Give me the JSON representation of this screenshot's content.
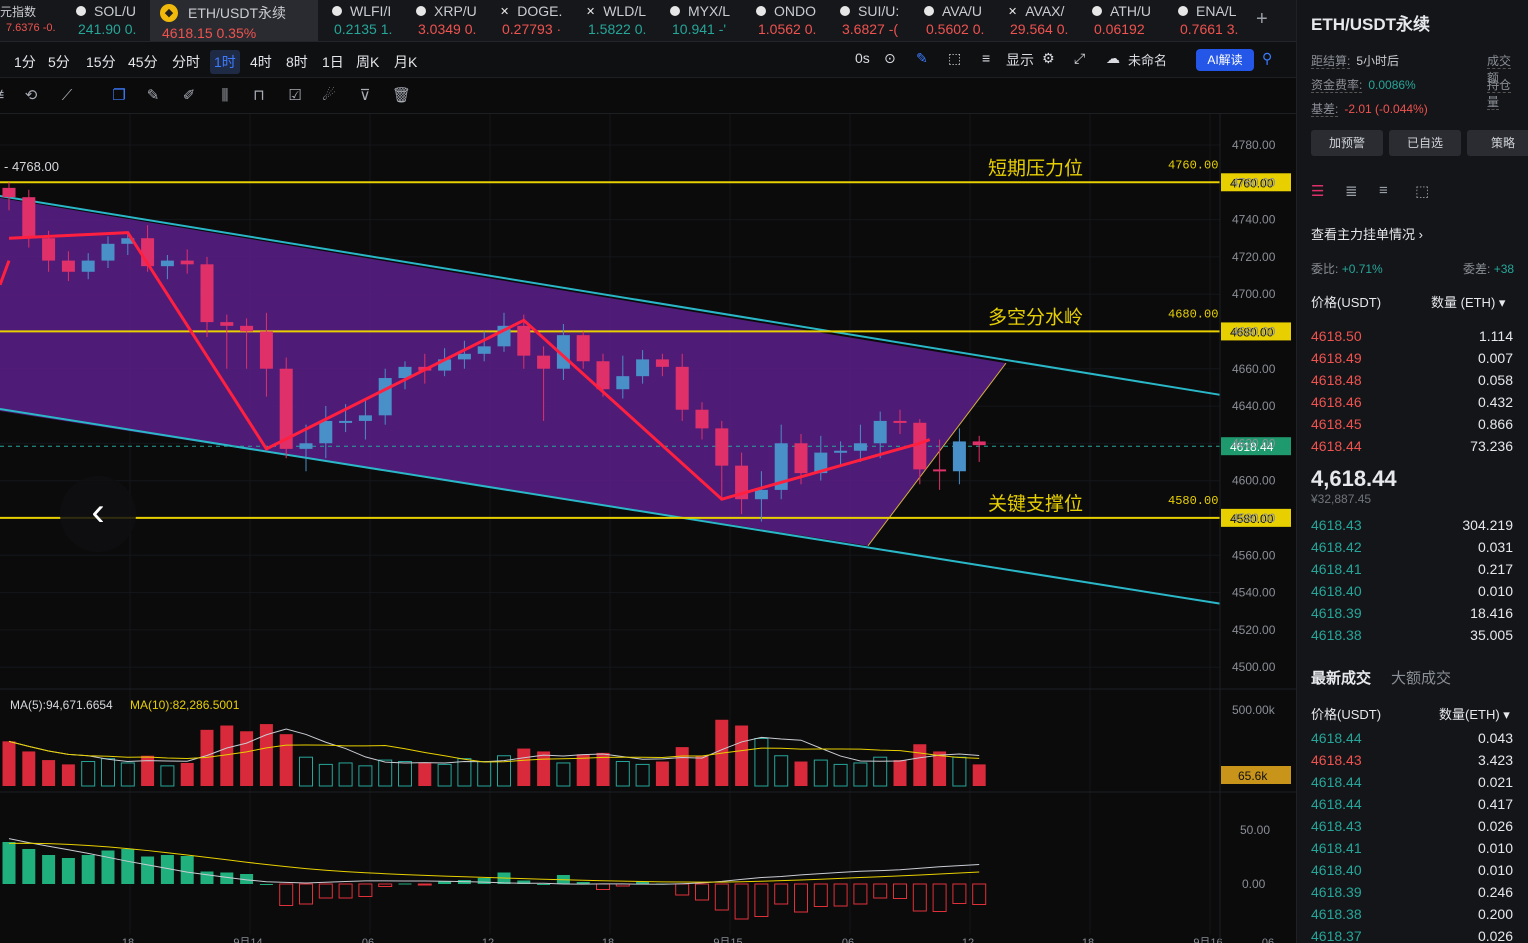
{
  "ticker": [
    {
      "name": "元指数",
      "price": "7.6376",
      "change": "-0.",
      "dir": "neg",
      "icon": "none",
      "active": false
    },
    {
      "name": "SOL/U",
      "price": "241.90",
      "change": "0.",
      "dir": "pos",
      "icon": "dot"
    },
    {
      "name": "ETH/USDT永续",
      "price": "4618.15",
      "change": "0.35%",
      "dir": "neg",
      "icon": "binance-logo",
      "active": true
    },
    {
      "name": "WLFI/I",
      "price": "0.2135",
      "change": "1.",
      "dir": "pos",
      "icon": "dot"
    },
    {
      "name": "XRP/U",
      "price": "3.0349",
      "change": "0.",
      "dir": "neg",
      "icon": "dot"
    },
    {
      "name": "DOGE.",
      "price": "0.27793",
      "change": "·",
      "dir": "neg",
      "icon": "x"
    },
    {
      "name": "WLD/L",
      "price": "1.5822",
      "change": "0.",
      "dir": "pos",
      "icon": "x"
    },
    {
      "name": "MYX/L",
      "price": "10.941",
      "change": "-'",
      "dir": "pos",
      "icon": "dot"
    },
    {
      "name": "ONDO",
      "price": "1.0562",
      "change": "0.",
      "dir": "neg",
      "icon": "dot"
    },
    {
      "name": "SUI/U:",
      "price": "3.6827",
      "change": "-(",
      "dir": "neg",
      "icon": "dot"
    },
    {
      "name": "AVA/U",
      "price": "0.5602",
      "change": "0.",
      "dir": "neg",
      "icon": "dot"
    },
    {
      "name": "AVAX/",
      "price": "29.564",
      "change": "0.",
      "dir": "neg",
      "icon": "x"
    },
    {
      "name": "ATH/U",
      "price": "0.06192",
      "change": "",
      "dir": "neg",
      "icon": "dot"
    },
    {
      "name": "ENA/L",
      "price": "0.7661",
      "change": "3.",
      "dir": "neg",
      "icon": "dot"
    }
  ],
  "timeframes": [
    "1分",
    "5分",
    "15分",
    "45分",
    "分时",
    "1时",
    "4时",
    "8时",
    "1日",
    "周K",
    "月K"
  ],
  "active_timeframe": "1时",
  "toolbar_right": {
    "countdown": "0s",
    "display": "显示",
    "unnamed": "未命名",
    "ai": "AI解读"
  },
  "chart": {
    "high_label": "4768.00",
    "levels": [
      {
        "name": "短期压力位",
        "price": "4760.00",
        "value": 4760
      },
      {
        "name": "多空分水岭",
        "price": "4680.00",
        "value": 4680
      },
      {
        "name": "关键支撑位",
        "price": "4580.00",
        "value": 4580
      }
    ],
    "current_price": "4618.44",
    "price_ticks": [
      "4780.00",
      "4760.00",
      "4740.00",
      "4720.00",
      "4700.00",
      "4680.00",
      "4660.00",
      "4640.00",
      "4620.00",
      "4600.00",
      "4580.00",
      "4560.00",
      "4540.00",
      "4520.00",
      "4500.00"
    ],
    "ma_label": {
      "ma5": "MA(5):94,671.6654",
      "ma10": "MA(10):82,286.5001"
    },
    "volume_ticks": [
      "500.00k",
      "65.6k"
    ],
    "macd_ticks": [
      "50.00",
      "0.00"
    ],
    "time_labels": [
      "18",
      "9月14",
      "06",
      "12",
      "18",
      "9月15",
      "06",
      "12",
      "18",
      "9月16",
      "06"
    ],
    "colors": {
      "up": "#4a90c8",
      "down": "#e0306a",
      "level": "#e8d000",
      "channel": "#2ab8c8",
      "zigzag": "#ff2040",
      "fill": "#5a1f8a"
    }
  },
  "chart_data": {
    "type": "candlestick",
    "interval": "1h",
    "y_range": [
      4490,
      4790
    ],
    "candles": [
      [
        4757,
        4752,
        4760,
        4745
      ],
      [
        4752,
        4730,
        4756,
        4725
      ],
      [
        4730,
        4718,
        4734,
        4712
      ],
      [
        4718,
        4712,
        4723,
        4707
      ],
      [
        4712,
        4718,
        4722,
        4708
      ],
      [
        4718,
        4727,
        4731,
        4714
      ],
      [
        4727,
        4730,
        4733,
        4721
      ],
      [
        4730,
        4715,
        4737,
        4712
      ],
      [
        4715,
        4718,
        4721,
        4708
      ],
      [
        4718,
        4716,
        4724,
        4711
      ],
      [
        4716,
        4685,
        4720,
        4677
      ],
      [
        4685,
        4683,
        4689,
        4660
      ],
      [
        4683,
        4680,
        4687,
        4660
      ],
      [
        4680,
        4660,
        4690,
        4645
      ],
      [
        4660,
        4617,
        4666,
        4612
      ],
      [
        4617,
        4620,
        4630,
        4605
      ],
      [
        4620,
        4632,
        4640,
        4612
      ],
      [
        4632,
        4632,
        4641,
        4626
      ],
      [
        4632,
        4635,
        4643,
        4622
      ],
      [
        4635,
        4655,
        4660,
        4630
      ],
      [
        4655,
        4661,
        4664,
        4649
      ],
      [
        4661,
        4659,
        4668,
        4652
      ],
      [
        4659,
        4665,
        4671,
        4656
      ],
      [
        4665,
        4668,
        4675,
        4660
      ],
      [
        4668,
        4672,
        4680,
        4664
      ],
      [
        4672,
        4683,
        4690,
        4669
      ],
      [
        4683,
        4667,
        4689,
        4660
      ],
      [
        4667,
        4660,
        4672,
        4632
      ],
      [
        4660,
        4678,
        4684,
        4654
      ],
      [
        4678,
        4664,
        4680,
        4660
      ],
      [
        4664,
        4649,
        4668,
        4645
      ],
      [
        4649,
        4656,
        4667,
        4644
      ],
      [
        4656,
        4665,
        4670,
        4652
      ],
      [
        4665,
        4661,
        4668,
        4656
      ],
      [
        4661,
        4638,
        4668,
        4632
      ],
      [
        4638,
        4628,
        4642,
        4622
      ],
      [
        4628,
        4608,
        4632,
        4590
      ],
      [
        4608,
        4590,
        4615,
        4582
      ],
      [
        4590,
        4595,
        4605,
        4578
      ],
      [
        4595,
        4620,
        4630,
        4590
      ],
      [
        4620,
        4604,
        4625,
        4598
      ],
      [
        4604,
        4615,
        4624,
        4600
      ],
      [
        4615,
        4616,
        4621,
        4608
      ],
      [
        4616,
        4620,
        4630,
        4610
      ],
      [
        4620,
        4632,
        4637,
        4612
      ],
      [
        4632,
        4631,
        4638,
        4625
      ],
      [
        4631,
        4606,
        4633,
        4598
      ],
      [
        4606,
        4605,
        4622,
        4595
      ],
      [
        4605,
        4621,
        4628,
        4598
      ],
      [
        4621,
        4619,
        4624,
        4610
      ]
    ],
    "volume": [
      310,
      240,
      180,
      150,
      170,
      190,
      160,
      210,
      140,
      160,
      390,
      420,
      380,
      430,
      360,
      200,
      150,
      160,
      140,
      180,
      170,
      160,
      150,
      190,
      170,
      210,
      260,
      240,
      160,
      220,
      230,
      170,
      150,
      170,
      270,
      210,
      460,
      420,
      330,
      210,
      170,
      180,
      150,
      160,
      200,
      180,
      290,
      240,
      200,
      150
    ]
  },
  "orderbook": {
    "title": "ETH/USDT永续",
    "settle_label": "距结算:",
    "settle_value": "5小时后",
    "vol_label": "成交额",
    "fund_label": "资金费率:",
    "fund_value": "0.0086%",
    "oi_label": "持仓量",
    "basis_label": "基差:",
    "basis_value": "-2.01 (-0.044%)",
    "buttons": [
      "加预警",
      "已自选",
      "策略"
    ],
    "main_link": "查看主力挂单情况",
    "ratio_label": "委比:",
    "ratio_value": "+0.71%",
    "diff_label": "委差:",
    "diff_value": "+38",
    "col_price": "价格(USDT)",
    "col_qty": "数量 (ETH)",
    "asks": [
      [
        "4618.50",
        "1.114"
      ],
      [
        "4618.49",
        "0.007"
      ],
      [
        "4618.48",
        "0.058"
      ],
      [
        "4618.46",
        "0.432"
      ],
      [
        "4618.45",
        "0.866"
      ],
      [
        "4618.44",
        "73.236"
      ]
    ],
    "last": "4,618.44",
    "last_cny": "¥32,887.45",
    "bids": [
      [
        "4618.43",
        "304.219"
      ],
      [
        "4618.42",
        "0.031"
      ],
      [
        "4618.41",
        "0.217"
      ],
      [
        "4618.40",
        "0.010"
      ],
      [
        "4618.39",
        "18.416"
      ],
      [
        "4618.38",
        "35.005"
      ]
    ],
    "tabs": [
      "最新成交",
      "大额成交"
    ],
    "trade_price": "价格(USDT)",
    "trade_qty": "数量(ETH)",
    "trades": [
      [
        "4618.44",
        "0.043",
        "pos"
      ],
      [
        "4618.43",
        "3.423",
        "neg"
      ],
      [
        "4618.44",
        "0.021",
        "pos"
      ],
      [
        "4618.44",
        "0.417",
        "pos"
      ],
      [
        "4618.43",
        "0.026",
        "pos"
      ],
      [
        "4618.41",
        "0.010",
        "pos"
      ],
      [
        "4618.40",
        "0.010",
        "pos"
      ],
      [
        "4618.39",
        "0.246",
        "pos"
      ],
      [
        "4618.38",
        "0.200",
        "pos"
      ],
      [
        "4618.37",
        "0.026",
        "pos"
      ]
    ]
  }
}
